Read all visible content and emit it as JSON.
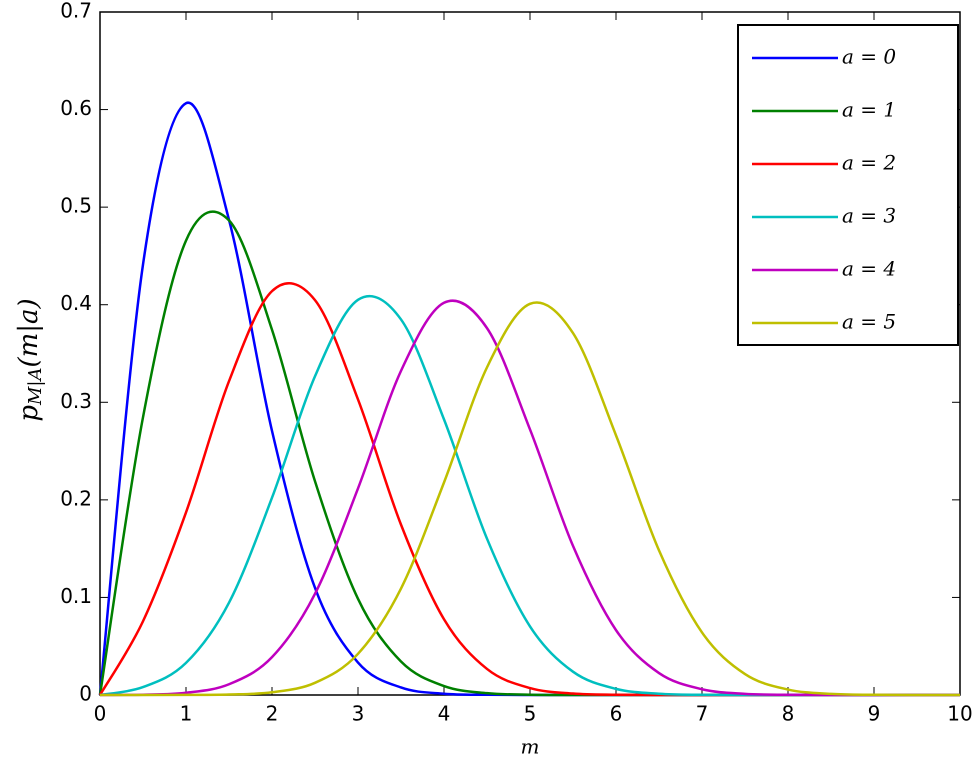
{
  "chart_data": {
    "type": "line",
    "xlabel": "m",
    "ylabel": {
      "base": "p",
      "sub": "M|A",
      "arg": "(m|a)"
    },
    "x": [
      0,
      0.5,
      1,
      1.5,
      2,
      2.5,
      3,
      3.5,
      4,
      4.5,
      5,
      5.5,
      6,
      6.5,
      7,
      7.5,
      8,
      8.5,
      9,
      9.5,
      10
    ],
    "series": [
      {
        "name": "a = 0",
        "color": "#0000ff",
        "values": [
          0,
          0.4412,
          0.6065,
          0.487,
          0.2707,
          0.1098,
          0.0333,
          0.0077,
          0.0013,
          0.0002,
          0,
          0,
          0,
          0,
          0,
          0,
          0,
          0,
          0,
          0,
          0
        ]
      },
      {
        "name": "a = 1",
        "color": "#008000",
        "values": [
          0,
          0.2846,
          0.4657,
          0.4864,
          0.3743,
          0.2191,
          0.0986,
          0.0343,
          0.0092,
          0.0019,
          0.0003,
          0,
          0,
          0,
          0,
          0,
          0,
          0,
          0,
          0,
          0
        ]
      },
      {
        "name": "a = 2",
        "color": "#ff0000",
        "values": [
          0,
          0.0756,
          0.1871,
          0.3216,
          0.4139,
          0.4047,
          0.3029,
          0.1746,
          0.0776,
          0.0267,
          0.0071,
          0.0015,
          0.0002,
          0,
          0,
          0,
          0,
          0,
          0,
          0,
          0
        ]
      },
      {
        "name": "a = 3",
        "color": "#00bfbf",
        "values": [
          0,
          0.0081,
          0.0329,
          0.0946,
          0.2022,
          0.3267,
          0.405,
          0.3849,
          0.2825,
          0.1602,
          0.0703,
          0.0239,
          0.0063,
          0.0013,
          0.0002,
          0,
          0,
          0,
          0,
          0,
          0
        ]
      },
      {
        "name": "a = 4",
        "color": "#bf00bf",
        "values": [
          0,
          0.0003,
          0.0023,
          0.011,
          0.0388,
          0.1037,
          0.2117,
          0.3322,
          0.402,
          0.376,
          0.2722,
          0.1528,
          0.0665,
          0.0225,
          0.0059,
          0.0012,
          0.0002,
          0,
          0,
          0,
          0
        ]
      },
      {
        "name": "a = 5",
        "color": "#bfbf00",
        "values": [
          0,
          0,
          0.0001,
          0.0005,
          0.0028,
          0.0125,
          0.0422,
          0.1091,
          0.2178,
          0.3358,
          0.4009,
          0.3709,
          0.2661,
          0.1482,
          0.0641,
          0.0215,
          0.0056,
          0.0011,
          0.0002,
          0,
          0
        ]
      }
    ],
    "xlim": [
      0,
      10
    ],
    "xticks": [
      0,
      1,
      2,
      3,
      4,
      5,
      6,
      7,
      8,
      9,
      10
    ],
    "ylim": [
      0,
      0.7
    ],
    "yticks": [
      0,
      0.1,
      0.2,
      0.3,
      0.4,
      0.5,
      0.6,
      0.7
    ],
    "grid": false,
    "legend": "upper-right"
  }
}
